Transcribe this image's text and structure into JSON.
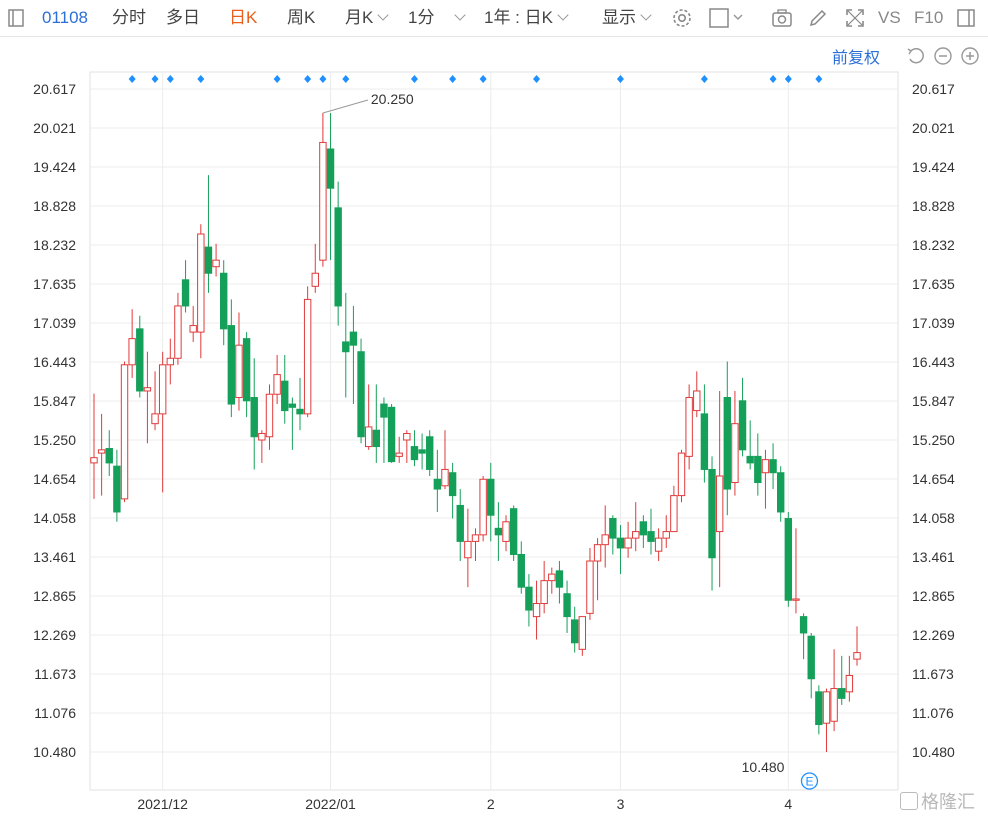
{
  "toolbar": {
    "code": "01108",
    "tabs": [
      "分时",
      "多日",
      "日K",
      "周K",
      "月K"
    ],
    "active_tab": "日K",
    "minute_select": "1分",
    "period_select": "1年 : 日K",
    "display_select": "显示",
    "vs_label": "VS",
    "f10_label": "F10"
  },
  "subbar": {
    "adjust_label": "前复权"
  },
  "colors": {
    "up": "#e03a3a",
    "down": "#15a05a",
    "accent": "#2b6fd8",
    "grid": "#ececec",
    "marker": "#1e90ff"
  },
  "watermark": "格隆汇",
  "chart_data": {
    "type": "candlestick",
    "y_ticks": [
      "20.617",
      "20.021",
      "19.424",
      "18.828",
      "18.232",
      "17.635",
      "17.039",
      "16.443",
      "15.847",
      "15.250",
      "14.654",
      "14.058",
      "13.461",
      "12.865",
      "12.269",
      "11.673",
      "11.076",
      "10.480"
    ],
    "ylim": [
      10.48,
      20.617
    ],
    "x_labels": [
      "2021/12",
      "2022/01",
      "2",
      "3",
      "4"
    ],
    "x_label_index": [
      9,
      31,
      52,
      69,
      91
    ],
    "annotations": {
      "high": "20.250",
      "low": "10.480",
      "event_badge": "E"
    },
    "marker_index": [
      5,
      8,
      10,
      14,
      24,
      28,
      30,
      33,
      42,
      47,
      51,
      58,
      69,
      80,
      89,
      91,
      95
    ],
    "candles": [
      [
        14.9,
        14.98,
        15.96,
        14.35
      ],
      [
        15.05,
        15.1,
        15.65,
        14.4
      ],
      [
        15.12,
        14.9,
        15.4,
        14.7
      ],
      [
        14.85,
        14.15,
        15.1,
        14.0
      ],
      [
        14.35,
        16.4,
        16.45,
        14.3
      ],
      [
        16.4,
        16.8,
        17.25,
        16.2
      ],
      [
        16.95,
        16.0,
        17.15,
        15.9
      ],
      [
        16.0,
        16.05,
        16.6,
        15.2
      ],
      [
        15.5,
        15.65,
        16.3,
        15.4
      ],
      [
        15.65,
        16.4,
        16.6,
        14.45
      ],
      [
        16.4,
        16.5,
        16.8,
        16.1
      ],
      [
        16.5,
        17.3,
        17.5,
        16.4
      ],
      [
        17.7,
        17.3,
        18.0,
        17.2
      ],
      [
        16.9,
        17.0,
        17.3,
        16.75
      ],
      [
        16.9,
        18.4,
        18.55,
        16.5
      ],
      [
        18.2,
        17.8,
        19.3,
        17.5
      ],
      [
        17.9,
        18.0,
        18.25,
        17.75
      ],
      [
        17.8,
        16.95,
        18.0,
        16.7
      ],
      [
        17.0,
        15.8,
        17.4,
        15.6
      ],
      [
        15.9,
        16.7,
        17.2,
        15.7
      ],
      [
        16.8,
        15.85,
        16.9,
        15.6
      ],
      [
        15.9,
        15.3,
        16.5,
        14.8
      ],
      [
        15.25,
        15.35,
        15.4,
        14.9
      ],
      [
        15.3,
        15.95,
        16.1,
        15.1
      ],
      [
        15.95,
        16.25,
        16.55,
        15.8
      ],
      [
        16.15,
        15.7,
        16.55,
        15.5
      ],
      [
        15.8,
        15.75,
        15.9,
        15.1
      ],
      [
        15.72,
        15.65,
        16.2,
        15.4
      ],
      [
        15.65,
        17.4,
        17.6,
        15.6
      ],
      [
        17.6,
        17.8,
        18.25,
        17.5
      ],
      [
        18.0,
        19.8,
        20.25,
        17.9
      ],
      [
        19.7,
        19.1,
        20.25,
        18.0
      ],
      [
        18.8,
        17.3,
        19.2,
        17.0
      ],
      [
        16.75,
        16.6,
        17.5,
        15.9
      ],
      [
        16.9,
        16.7,
        17.3,
        15.8
      ],
      [
        16.6,
        15.3,
        16.8,
        15.2
      ],
      [
        15.15,
        15.45,
        16.1,
        15.1
      ],
      [
        15.4,
        15.15,
        16.1,
        14.9
      ],
      [
        15.8,
        15.6,
        15.9,
        14.9
      ],
      [
        15.75,
        14.92,
        15.8,
        14.9
      ],
      [
        15.0,
        15.05,
        15.3,
        14.9
      ],
      [
        15.25,
        15.35,
        15.4,
        14.9
      ],
      [
        15.15,
        14.95,
        15.4,
        14.85
      ],
      [
        15.1,
        15.05,
        15.35,
        14.8
      ],
      [
        15.3,
        14.8,
        15.4,
        14.7
      ],
      [
        14.65,
        14.5,
        15.1,
        14.15
      ],
      [
        14.55,
        14.8,
        15.4,
        14.5
      ],
      [
        14.75,
        14.4,
        14.9,
        14.05
      ],
      [
        14.25,
        13.7,
        14.5,
        13.4
      ],
      [
        13.45,
        13.7,
        14.2,
        13.0
      ],
      [
        13.7,
        13.8,
        13.9,
        13.4
      ],
      [
        13.8,
        14.65,
        14.7,
        13.7
      ],
      [
        14.65,
        14.1,
        14.9,
        13.7
      ],
      [
        13.9,
        13.8,
        14.3,
        13.4
      ],
      [
        13.7,
        14.0,
        14.1,
        13.55
      ],
      [
        14.2,
        13.5,
        14.25,
        13.4
      ],
      [
        13.5,
        13.0,
        13.7,
        12.9
      ],
      [
        13.0,
        12.65,
        13.2,
        12.4
      ],
      [
        12.55,
        12.75,
        13.1,
        12.2
      ],
      [
        12.75,
        13.1,
        13.4,
        12.6
      ],
      [
        13.1,
        13.2,
        13.3,
        12.9
      ],
      [
        13.25,
        13.0,
        13.4,
        12.75
      ],
      [
        12.9,
        12.55,
        13.1,
        12.3
      ],
      [
        12.5,
        12.15,
        12.7,
        12.0
      ],
      [
        12.05,
        12.55,
        12.55,
        11.95
      ],
      [
        12.6,
        13.4,
        13.6,
        12.5
      ],
      [
        13.4,
        13.65,
        13.75,
        12.8
      ],
      [
        13.65,
        13.8,
        14.25,
        13.3
      ],
      [
        14.05,
        13.75,
        14.1,
        13.5
      ],
      [
        13.75,
        13.6,
        13.95,
        13.2
      ],
      [
        13.6,
        13.75,
        14.0,
        13.45
      ],
      [
        13.75,
        13.85,
        14.3,
        13.55
      ],
      [
        14.0,
        13.8,
        14.1,
        13.6
      ],
      [
        13.85,
        13.7,
        14.2,
        13.5
      ],
      [
        13.55,
        13.75,
        13.9,
        13.4
      ],
      [
        13.75,
        13.85,
        14.1,
        13.6
      ],
      [
        13.85,
        14.4,
        14.55,
        13.85
      ],
      [
        14.4,
        15.05,
        15.1,
        14.3
      ],
      [
        15.0,
        15.9,
        16.1,
        14.8
      ],
      [
        15.7,
        16.0,
        16.3,
        15.6
      ],
      [
        15.65,
        14.8,
        16.1,
        14.6
      ],
      [
        14.8,
        13.45,
        15.0,
        12.95
      ],
      [
        13.85,
        14.7,
        16.0,
        13.0
      ],
      [
        15.9,
        14.5,
        16.45,
        14.1
      ],
      [
        14.6,
        15.5,
        16.0,
        14.4
      ],
      [
        15.85,
        15.1,
        16.2,
        15.0
      ],
      [
        15.0,
        14.9,
        15.55,
        14.8
      ],
      [
        15.0,
        14.6,
        15.35,
        14.4
      ],
      [
        14.75,
        14.95,
        15.1,
        14.2
      ],
      [
        14.95,
        14.75,
        15.2,
        14.5
      ],
      [
        14.75,
        14.15,
        14.85,
        14.0
      ],
      [
        14.05,
        12.8,
        14.15,
        12.7
      ],
      [
        12.8,
        12.82,
        13.9,
        12.6
      ],
      [
        12.55,
        12.3,
        12.6,
        11.9
      ],
      [
        12.25,
        11.6,
        12.3,
        11.3
      ],
      [
        11.4,
        10.9,
        11.5,
        10.75
      ],
      [
        10.92,
        11.4,
        11.45,
        10.48
      ],
      [
        10.95,
        11.45,
        12.05,
        10.8
      ],
      [
        11.45,
        11.3,
        11.95,
        11.2
      ],
      [
        11.4,
        11.65,
        11.95,
        11.25
      ],
      [
        11.9,
        12.0,
        12.4,
        11.8
      ]
    ]
  }
}
